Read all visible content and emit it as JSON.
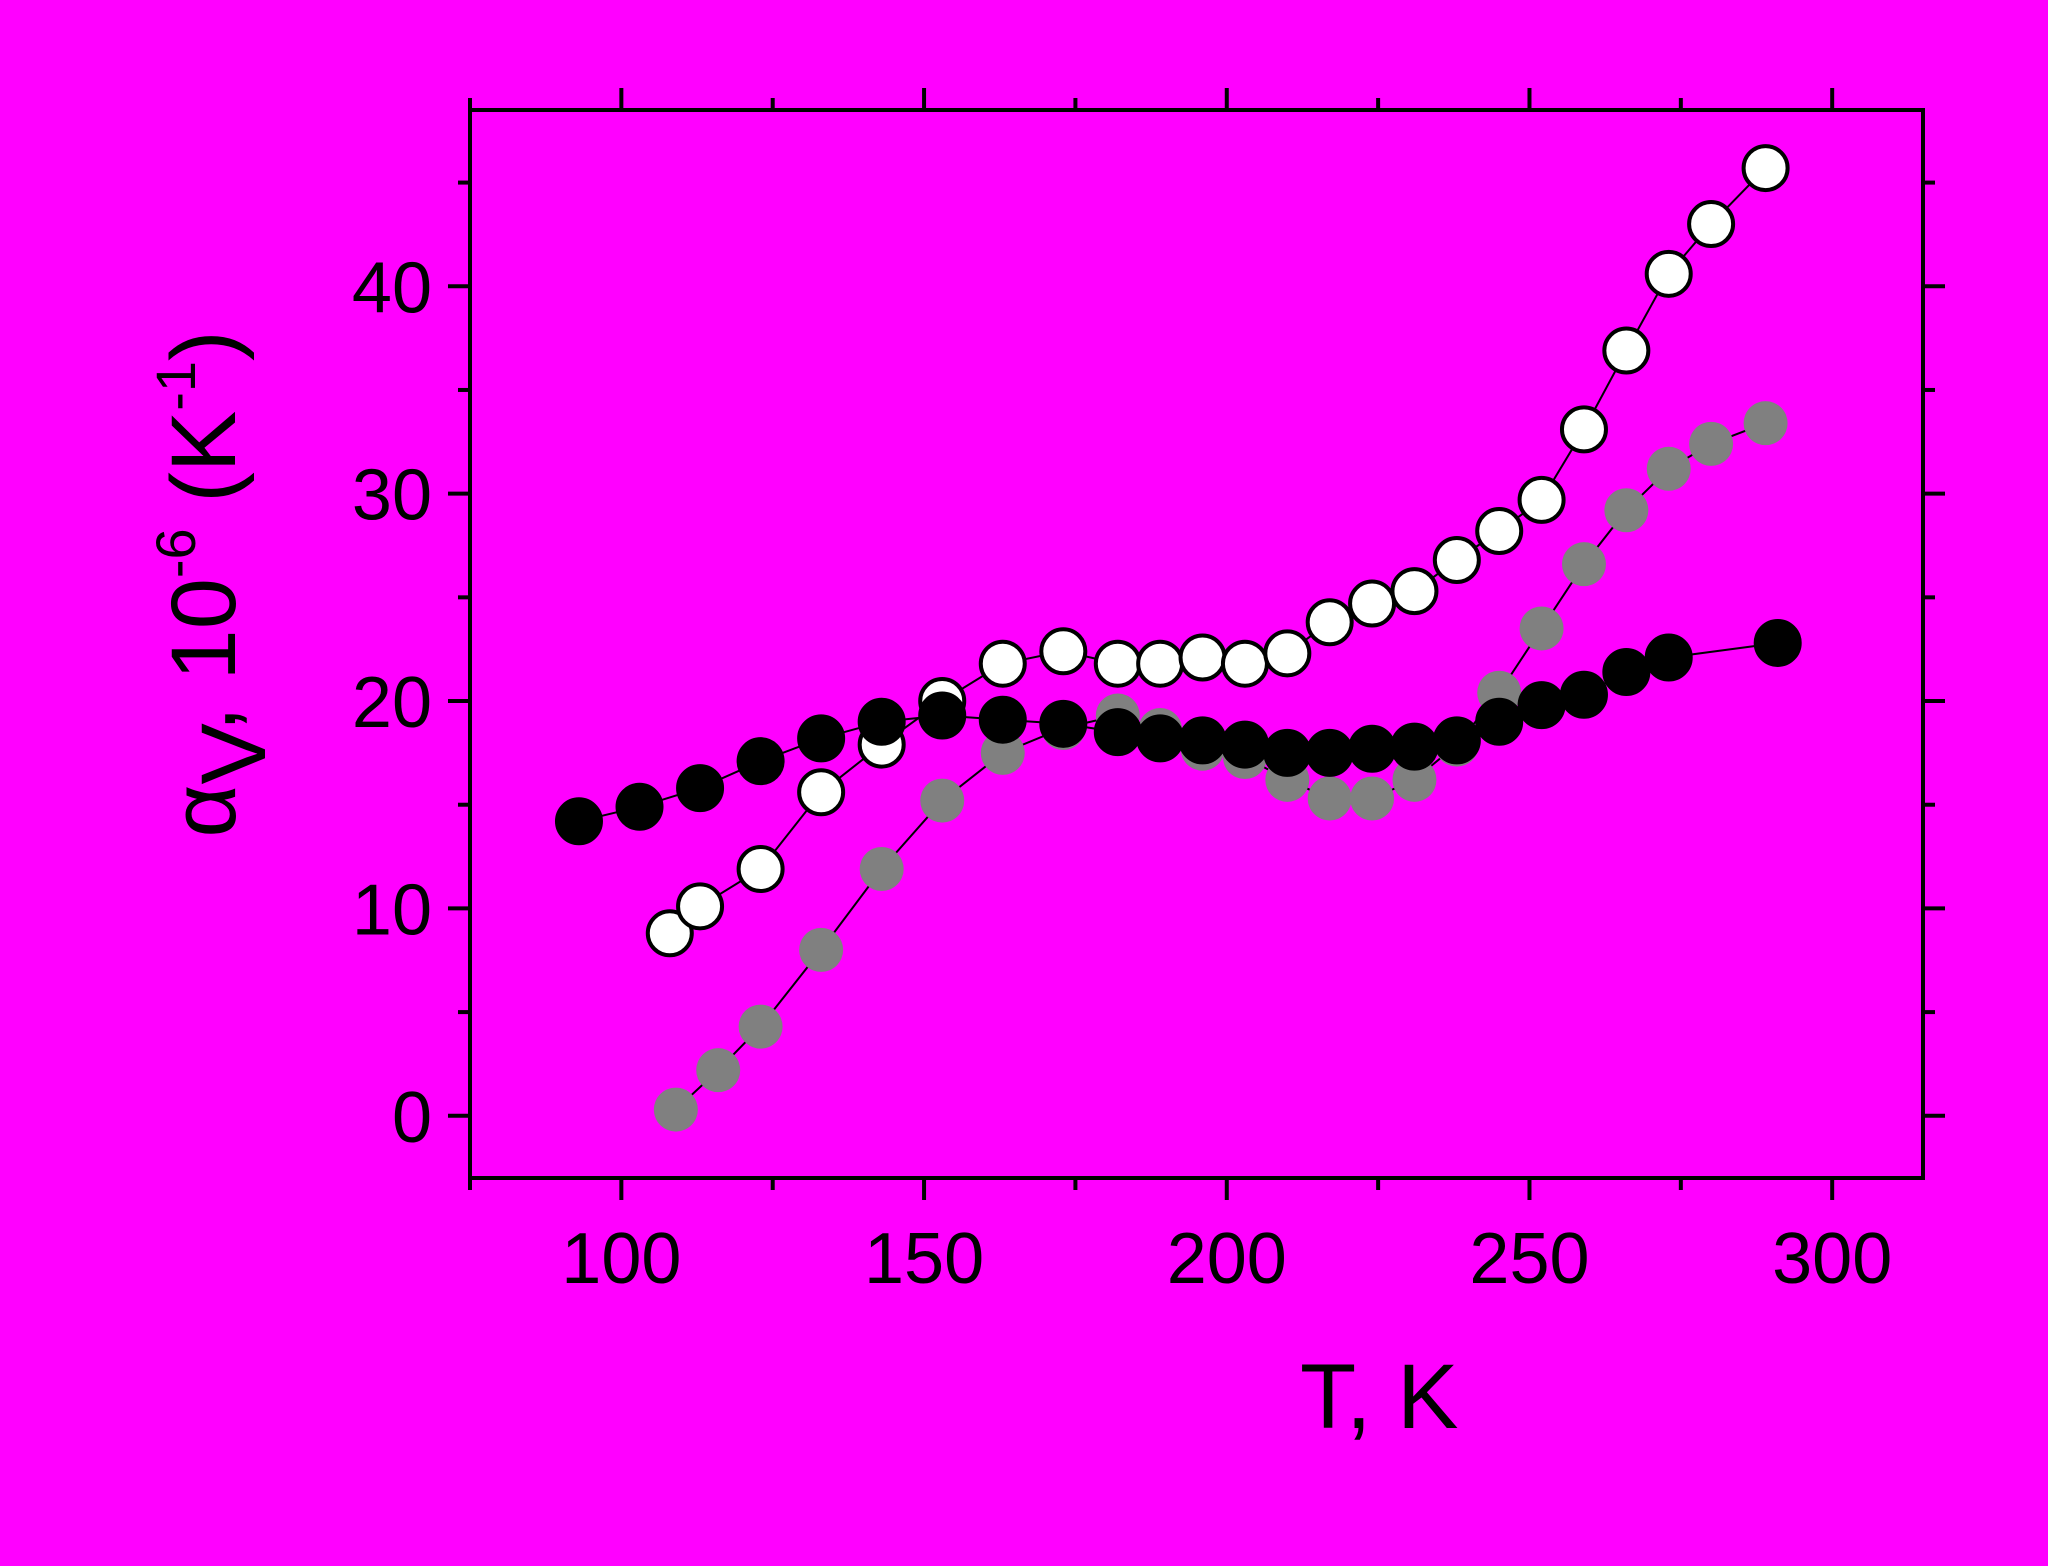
{
  "chart_data": {
    "type": "scatter",
    "title": "",
    "xlabel": "T, K",
    "ylabel": {
      "alpha": "α",
      "sub": "V",
      "sep": ", 10",
      "exp1": "-6",
      "unit_open": " (K",
      "exp2": "-1",
      "unit_close": ")"
    },
    "xlim": [
      75,
      315
    ],
    "ylim": [
      -3.0,
      48.5
    ],
    "x_ticks": [
      100,
      150,
      200,
      250,
      300
    ],
    "x_tick_labels": [
      "100",
      "150",
      "200",
      "250",
      "300"
    ],
    "y_ticks": [
      0,
      10,
      20,
      30,
      40
    ],
    "y_tick_labels": [
      "0",
      "10",
      "20",
      "30",
      "40"
    ],
    "grid": false,
    "legend": "none",
    "series": [
      {
        "marker": "circle",
        "fill": "#808080",
        "stroke": "none",
        "x": [
          109,
          116,
          123,
          133,
          143,
          153,
          163,
          173,
          182,
          189,
          196,
          203,
          210,
          217,
          224,
          231,
          238,
          245,
          252,
          259,
          266,
          273,
          280,
          289
        ],
        "y": [
          0.3,
          2.2,
          4.3,
          8.0,
          11.9,
          15.2,
          17.5,
          18.7,
          19.3,
          18.6,
          17.7,
          17.3,
          16.2,
          15.3,
          15.3,
          16.2,
          17.9,
          20.4,
          23.5,
          26.6,
          29.2,
          31.2,
          32.4,
          33.4
        ]
      },
      {
        "marker": "circle",
        "fill": "#FFFFFF",
        "stroke": "#000000",
        "x": [
          108,
          113,
          123,
          133,
          143,
          153,
          163,
          173,
          182,
          189,
          196,
          203,
          210,
          217,
          224,
          231,
          238,
          245,
          252,
          259,
          266,
          273,
          280,
          289
        ],
        "y": [
          8.8,
          10.1,
          11.9,
          15.6,
          17.9,
          20.0,
          21.8,
          22.4,
          21.8,
          21.8,
          22.1,
          21.8,
          22.3,
          23.8,
          24.7,
          25.3,
          26.8,
          28.2,
          29.7,
          33.1,
          36.9,
          40.6,
          43.0,
          45.7
        ]
      },
      {
        "marker": "circle",
        "fill": "#000000",
        "stroke": "#000000",
        "x": [
          93,
          103,
          113,
          123,
          133,
          143,
          153,
          163,
          173,
          182,
          189,
          196,
          203,
          210,
          217,
          224,
          231,
          238,
          245,
          252,
          259,
          266,
          273,
          291
        ],
        "y": [
          14.2,
          14.9,
          15.8,
          17.1,
          18.2,
          19.0,
          19.3,
          19.1,
          18.9,
          18.5,
          18.2,
          18.1,
          17.9,
          17.5,
          17.5,
          17.7,
          17.8,
          18.1,
          19.0,
          19.8,
          20.3,
          21.4,
          22.1,
          22.8
        ]
      }
    ]
  }
}
